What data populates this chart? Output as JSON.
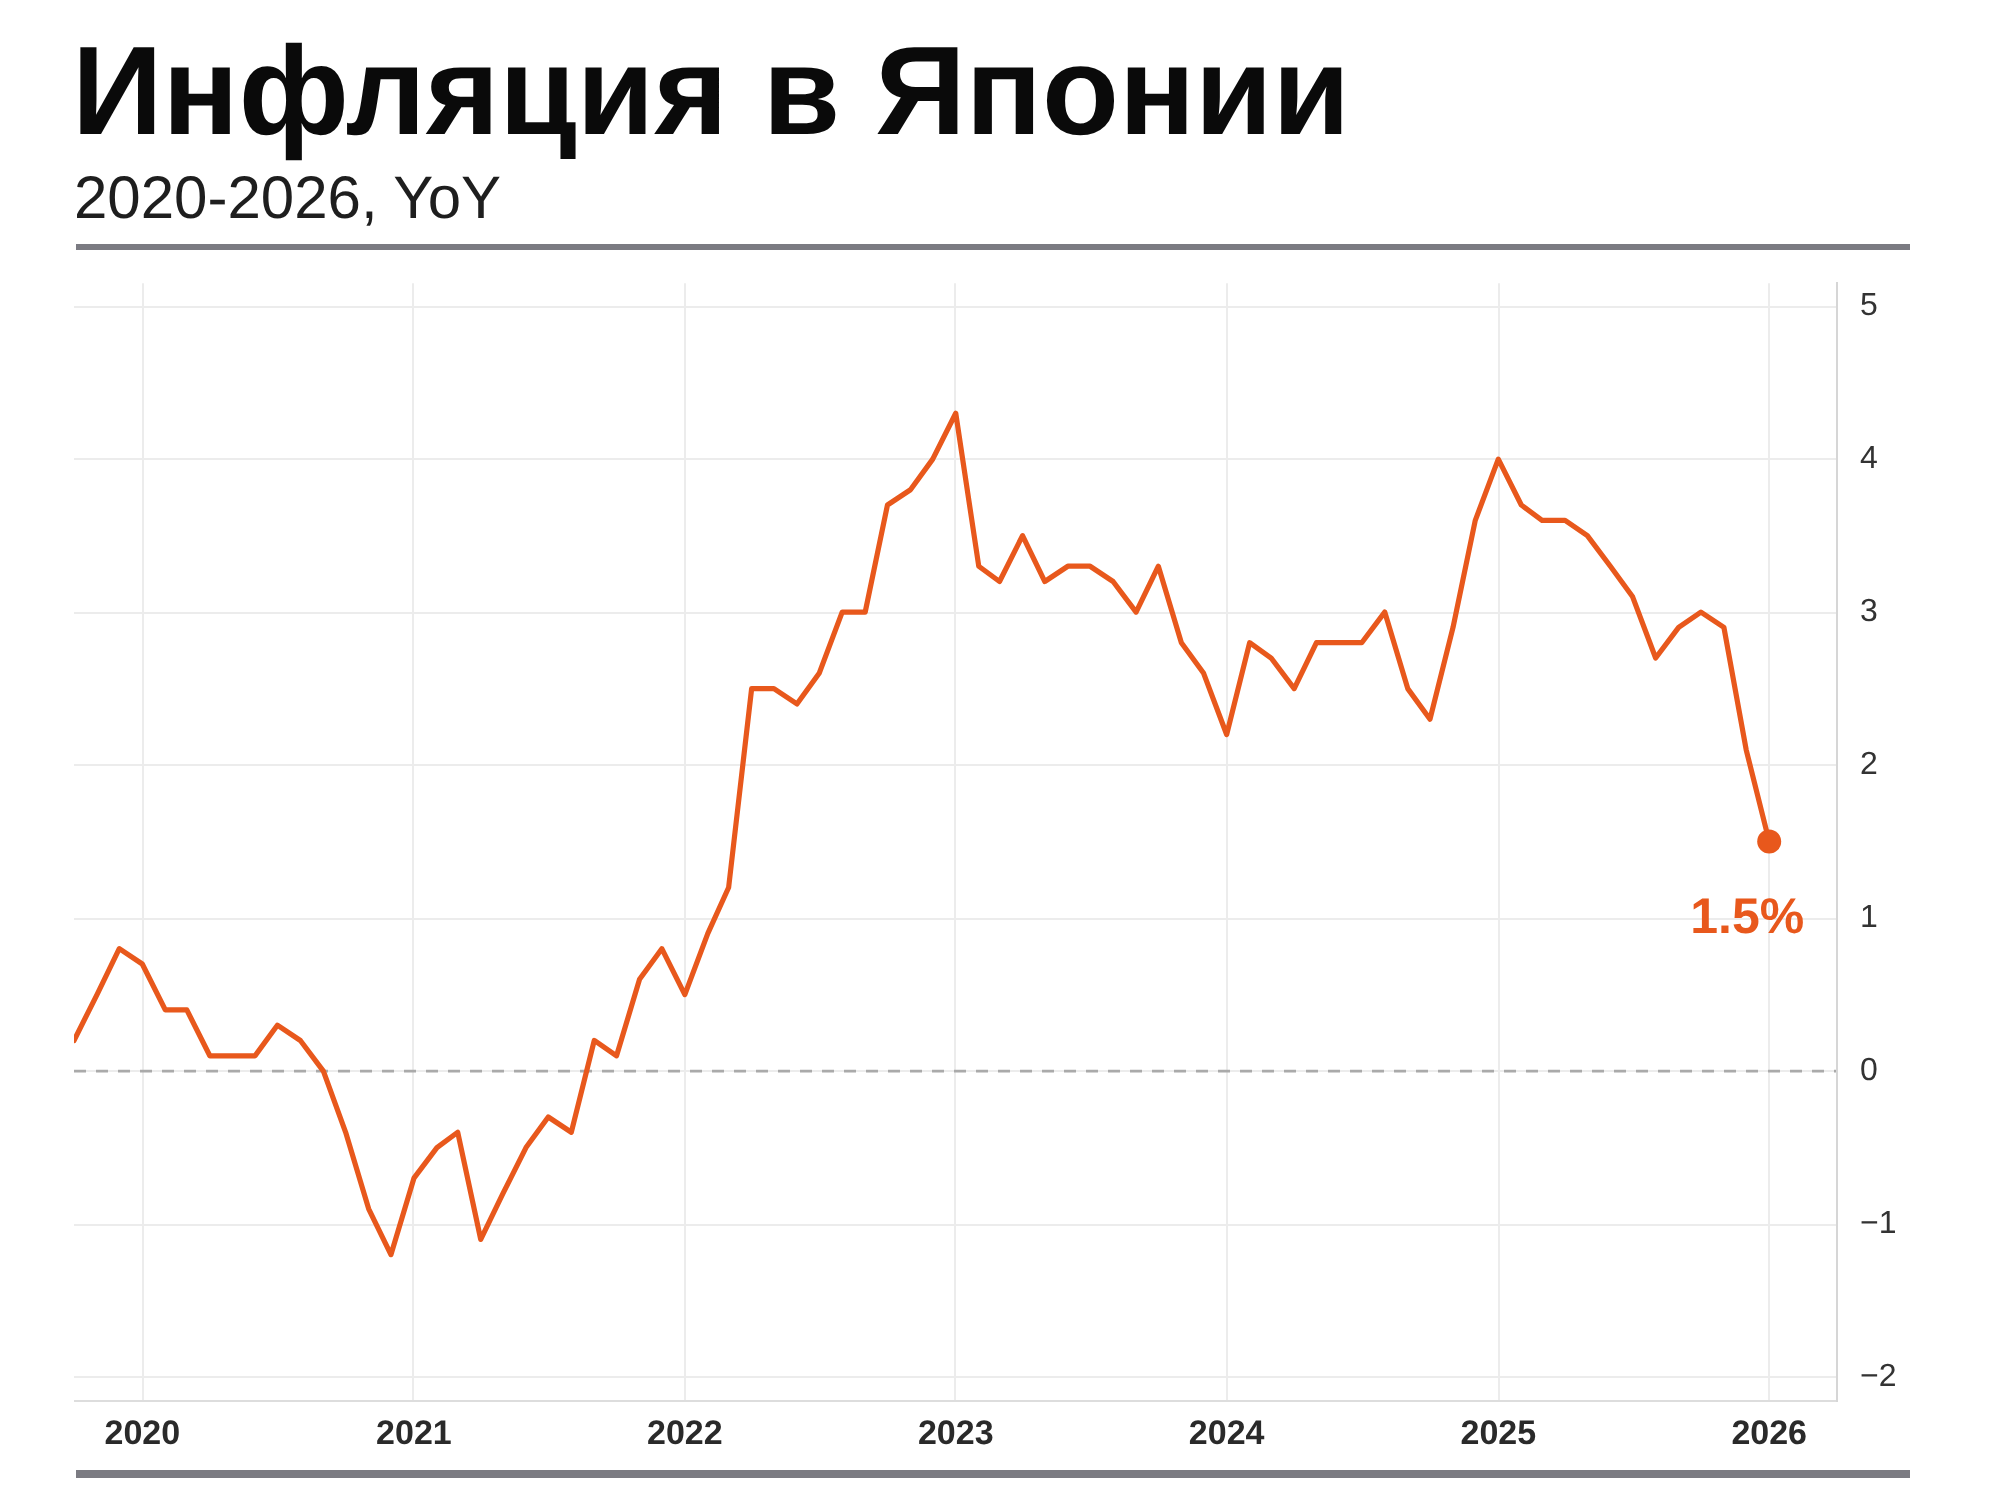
{
  "chart_data": {
    "type": "line",
    "title": "Инфляция в Японии",
    "subtitle": "2020-2026, YoY",
    "x": [
      "2019-10",
      "2019-11",
      "2019-12",
      "2020-01",
      "2020-02",
      "2020-03",
      "2020-04",
      "2020-05",
      "2020-06",
      "2020-07",
      "2020-08",
      "2020-09",
      "2020-10",
      "2020-11",
      "2020-12",
      "2021-01",
      "2021-02",
      "2021-03",
      "2021-04",
      "2021-05",
      "2021-06",
      "2021-07",
      "2021-08",
      "2021-09",
      "2021-10",
      "2021-11",
      "2021-12",
      "2022-01",
      "2022-02",
      "2022-03",
      "2022-04",
      "2022-05",
      "2022-06",
      "2022-07",
      "2022-08",
      "2022-09",
      "2022-10",
      "2022-11",
      "2022-12",
      "2023-01",
      "2023-02",
      "2023-03",
      "2023-04",
      "2023-05",
      "2023-06",
      "2023-07",
      "2023-08",
      "2023-09",
      "2023-10",
      "2023-11",
      "2023-12",
      "2024-01",
      "2024-02",
      "2024-03",
      "2024-04",
      "2024-05",
      "2024-06",
      "2024-07",
      "2024-08",
      "2024-09",
      "2024-10",
      "2024-11",
      "2024-12",
      "2025-01",
      "2025-02",
      "2025-03",
      "2025-04",
      "2025-05",
      "2025-06",
      "2025-07",
      "2025-08",
      "2025-09",
      "2025-10",
      "2025-11",
      "2025-12",
      "2026-01"
    ],
    "series": [
      {
        "color": "#e8581c",
        "values": [
          0.2,
          0.5,
          0.8,
          0.7,
          0.4,
          0.4,
          0.1,
          0.1,
          0.1,
          0.3,
          0.2,
          0.0,
          -0.4,
          -0.9,
          -1.2,
          -0.7,
          -0.5,
          -0.4,
          -1.1,
          -0.8,
          -0.5,
          -0.3,
          -0.4,
          0.2,
          0.1,
          0.6,
          0.8,
          0.5,
          0.9,
          1.2,
          2.5,
          2.5,
          2.4,
          2.6,
          3.0,
          3.0,
          3.7,
          3.8,
          4.0,
          4.3,
          3.3,
          3.2,
          3.5,
          3.2,
          3.3,
          3.3,
          3.2,
          3.0,
          3.3,
          2.8,
          2.6,
          2.2,
          2.8,
          2.7,
          2.5,
          2.8,
          2.8,
          2.8,
          3.0,
          2.5,
          2.3,
          2.9,
          3.6,
          4.0,
          3.7,
          3.6,
          3.6,
          3.5,
          3.3,
          3.1,
          2.7,
          2.9,
          3.0,
          2.9,
          2.1,
          1.5
        ]
      },
      {
        "type": "scatter",
        "color": "#e8581c",
        "marker": "circle",
        "x": [
          "2026-01"
        ],
        "values": [
          1.5
        ],
        "value_labels": [
          "1.5%"
        ]
      }
    ],
    "xlim": [
      "2019-10",
      "2026-04"
    ],
    "xticks": [
      "2020",
      "2021",
      "2022",
      "2023",
      "2024",
      "2025",
      "2026"
    ],
    "ylim": [
      -2.15,
      5.15
    ],
    "yticks": [
      {
        "value": -2,
        "label": "−2"
      },
      {
        "value": -1,
        "label": "−1"
      },
      0,
      1,
      2,
      3,
      4,
      5
    ],
    "grid": true,
    "ref_lines": [
      {
        "axis": "y",
        "value": 0,
        "color": "#aaaaaa",
        "line_style": "dashed"
      }
    ]
  }
}
